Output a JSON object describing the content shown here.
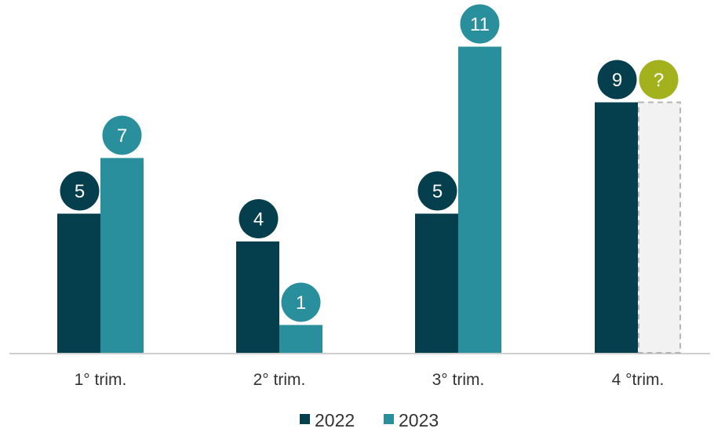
{
  "chart_data": {
    "type": "bar",
    "categories": [
      "1° trim.",
      "2° trim.",
      "3° trim.",
      "4 °trim."
    ],
    "series": [
      {
        "name": "2022",
        "color": "#053f4d",
        "values": [
          5,
          4,
          5,
          9
        ],
        "labels": [
          "5",
          "4",
          "5",
          "9"
        ]
      },
      {
        "name": "2023",
        "color": "#2a8f9c",
        "values": [
          7,
          1,
          11,
          null
        ],
        "labels": [
          "7",
          "1",
          "11",
          "?"
        ]
      }
    ],
    "unknown_value_style": {
      "label": "?",
      "bubble_color": "#a3b11c",
      "placeholder_fill": "#f2f2f2",
      "placeholder_border": "#b5b5b5"
    },
    "ylim": [
      0,
      11
    ],
    "grid": false,
    "legend": "bottom-center",
    "title": "",
    "xlabel": "",
    "ylabel": ""
  }
}
